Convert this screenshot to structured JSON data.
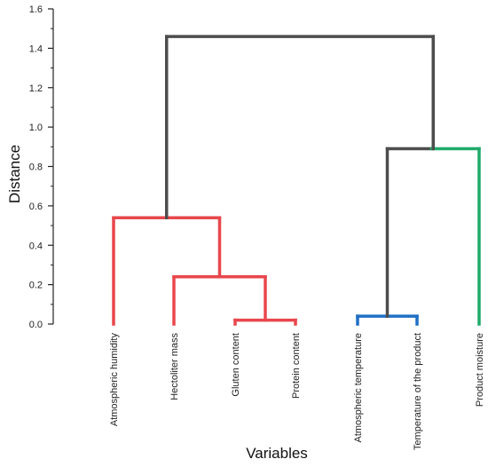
{
  "chart_data": {
    "type": "dendrogram",
    "xlabel": "Variables",
    "ylabel": "Distance",
    "ylim": [
      0,
      1.6
    ],
    "y_ticks": [
      "0.0",
      "0.2",
      "0.4",
      "0.6",
      "0.8",
      "1.0",
      "1.2",
      "1.4",
      "1.6"
    ],
    "leaves": [
      "Atmospheric humidity",
      "Hectoliter mass",
      "Gluten content",
      "Protein content",
      "Atmospheric temperature",
      "Temperature of the product",
      "Product moisture"
    ],
    "merges": [
      {
        "id": "m1",
        "left": "L2",
        "right": "L3",
        "height": 0.02,
        "color": "#e8474c"
      },
      {
        "id": "m2",
        "left": "L1",
        "right": "m1",
        "height": 0.24,
        "color": "#e8474c"
      },
      {
        "id": "m3",
        "left": "L0",
        "right": "m2",
        "height": 0.54,
        "color": "#e8474c"
      },
      {
        "id": "m4",
        "left": "L4",
        "right": "L5",
        "height": 0.04,
        "color": "#1f6fc5"
      },
      {
        "id": "m5",
        "left": "m4",
        "right": "L6",
        "height": 0.89,
        "left_color": "#4d4d4d",
        "right_color": "#1faa6a",
        "color": "#1faa6a"
      },
      {
        "id": "m6",
        "left": "m3",
        "right": "m5",
        "height": 1.46,
        "color": "#4d4d4d"
      }
    ]
  }
}
